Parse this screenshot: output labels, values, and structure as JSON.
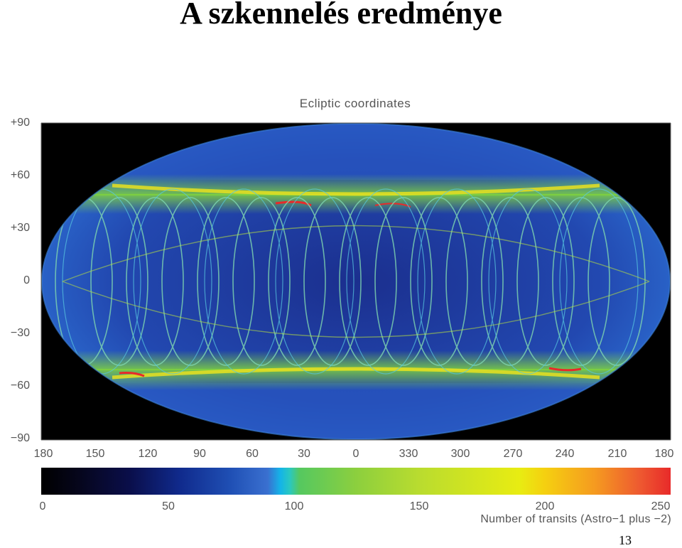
{
  "slide": {
    "title": "A szkennelés eredménye",
    "page_number": "13"
  },
  "figure": {
    "title": "Ecliptic coordinates",
    "y_ticks": [
      "+90",
      "+60",
      "+30",
      "0",
      "−30",
      "−60",
      "−90"
    ],
    "x_ticks": [
      "180",
      "150",
      "120",
      "90",
      "60",
      "30",
      "0",
      "330",
      "300",
      "270",
      "240",
      "210",
      "180"
    ],
    "colorbar": {
      "ticks": [
        "0",
        "50",
        "100",
        "150",
        "200",
        "250"
      ],
      "label": "Number of transits (Astro−1 plus −2)"
    },
    "colors": {
      "background": "#000000",
      "low": "#1e3fa0",
      "mid": "#2a64c8",
      "band": "#7ed040",
      "high": "#e8e020",
      "max": "#e82a2a"
    }
  }
}
